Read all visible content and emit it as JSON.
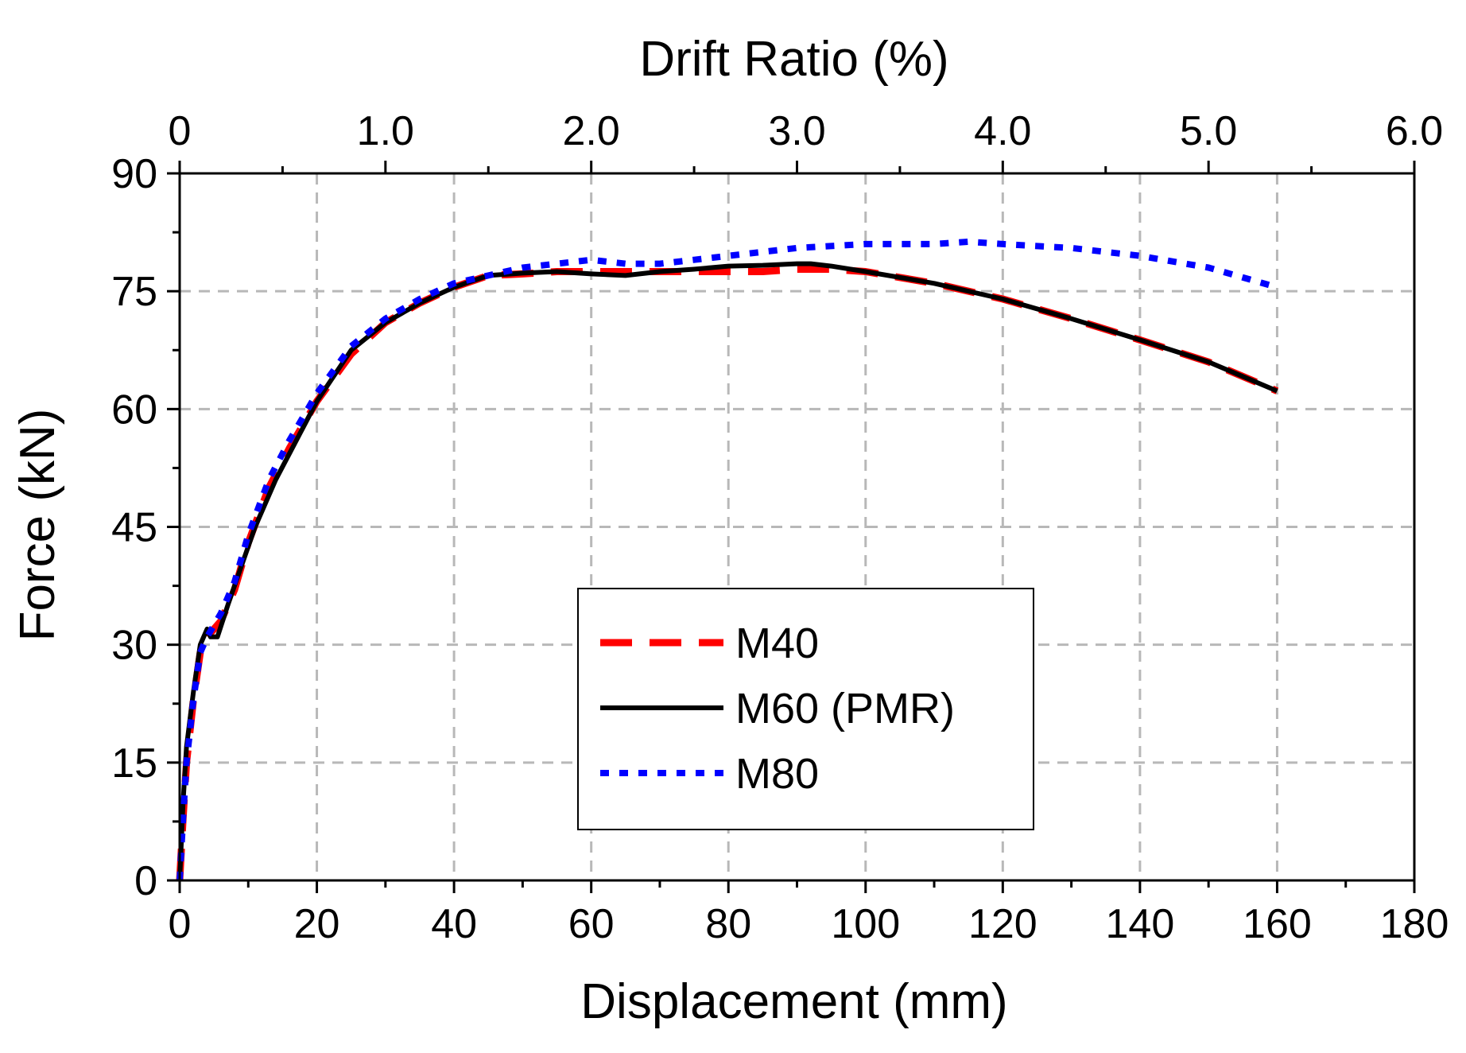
{
  "chart_data": {
    "type": "line",
    "xlabel": "Displacement (mm)",
    "ylabel": "Force (kN)",
    "x2label": "Drift Ratio (%)",
    "xlim": [
      0,
      180
    ],
    "ylim": [
      0,
      90
    ],
    "x2lim": [
      0,
      6.0
    ],
    "xticks": [
      0,
      20,
      40,
      60,
      80,
      100,
      120,
      140,
      160,
      180
    ],
    "xtick_labels": [
      "0",
      "20",
      "40",
      "60",
      "80",
      "100",
      "120",
      "140",
      "160",
      "180"
    ],
    "yticks": [
      0,
      15,
      30,
      45,
      60,
      75,
      90
    ],
    "ytick_labels": [
      "0",
      "15",
      "30",
      "45",
      "60",
      "75",
      "90"
    ],
    "x2ticks": [
      0,
      1.0,
      2.0,
      3.0,
      4.0,
      5.0,
      6.0
    ],
    "x2tick_labels": [
      "0",
      "1.0",
      "2.0",
      "3.0",
      "4.0",
      "5.0",
      "6.0"
    ],
    "grid": true,
    "legend_position": "lower-center",
    "series": [
      {
        "name": "M40",
        "color": "#ff0000",
        "style": "dashed",
        "x": [
          0,
          0.5,
          1,
          2,
          3,
          4,
          6,
          8,
          10,
          13,
          16,
          20,
          25,
          30,
          35,
          40,
          45,
          50,
          55,
          60,
          65,
          70,
          75,
          80,
          85,
          90,
          95,
          100,
          110,
          120,
          130,
          140,
          150,
          160
        ],
        "y": [
          0,
          8,
          15,
          23,
          29,
          31,
          33,
          37,
          43,
          50,
          55,
          61,
          67,
          71,
          73.5,
          75.5,
          77,
          77.2,
          77.5,
          77.5,
          77.5,
          77.5,
          77.5,
          77.5,
          77.5,
          77.8,
          77.8,
          77.5,
          76,
          74,
          71.5,
          68.8,
          66,
          62.3
        ]
      },
      {
        "name": "M60 (PMR)",
        "color": "#000000",
        "style": "solid",
        "x": [
          0,
          0.5,
          1,
          2,
          3,
          4,
          4.5,
          5.5,
          7,
          9,
          11,
          14,
          17,
          20,
          25,
          30,
          35,
          40,
          45,
          50,
          55,
          60,
          65,
          70,
          75,
          80,
          85,
          90,
          92,
          95,
          100,
          110,
          120,
          130,
          140,
          150,
          160
        ],
        "y": [
          0,
          10,
          17,
          24,
          30,
          32,
          31,
          31,
          35,
          40,
          45,
          51,
          56,
          61,
          67.5,
          71,
          73.5,
          75.5,
          77,
          77.3,
          77.5,
          77.2,
          77,
          77.5,
          77.8,
          78.2,
          78.3,
          78.5,
          78.5,
          78.2,
          77.5,
          76,
          74,
          71.5,
          68.8,
          66,
          62.3
        ]
      },
      {
        "name": "M80",
        "color": "#0000ff",
        "style": "dotted",
        "x": [
          0,
          0.5,
          1,
          2,
          3,
          4,
          6,
          8,
          10,
          13,
          16,
          20,
          25,
          30,
          35,
          40,
          45,
          50,
          55,
          60,
          65,
          70,
          75,
          80,
          90,
          100,
          110,
          115,
          120,
          130,
          140,
          150,
          160
        ],
        "y": [
          0,
          8,
          15,
          23,
          29,
          31,
          34,
          38,
          44,
          51,
          56,
          62,
          68,
          71.5,
          74,
          76,
          77,
          78,
          78.5,
          79,
          78.5,
          78.5,
          79,
          79.5,
          80.5,
          81,
          81,
          81.3,
          81,
          80.5,
          79.5,
          78,
          75.5
        ]
      }
    ]
  }
}
